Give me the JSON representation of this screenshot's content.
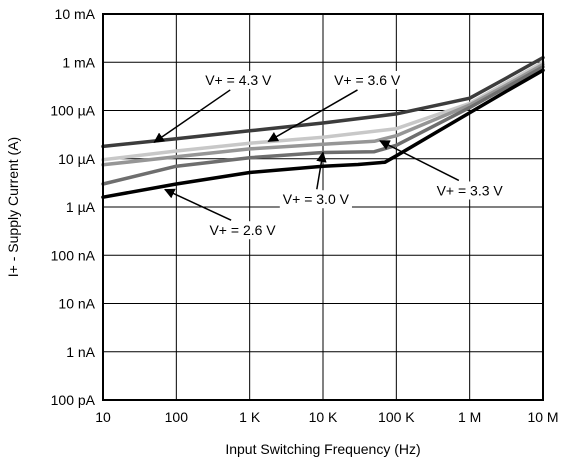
{
  "chart_data": {
    "type": "line",
    "xlabel": "Input Switching Frequency (Hz)",
    "ylabel": "I+ - Supply Current (A)",
    "xscale": "log",
    "yscale": "log",
    "xlim": [
      10,
      10000000
    ],
    "ylim": [
      1e-10,
      0.01
    ],
    "grid": true,
    "x_ticks": [
      {
        "value": 10,
        "label": "10"
      },
      {
        "value": 100,
        "label": "100"
      },
      {
        "value": 1000,
        "label": "1 K"
      },
      {
        "value": 10000,
        "label": "10 K"
      },
      {
        "value": 100000,
        "label": "100 K"
      },
      {
        "value": 1000000,
        "label": "1 M"
      },
      {
        "value": 10000000,
        "label": "10 M"
      }
    ],
    "y_ticks": [
      {
        "value": 1e-10,
        "label": "100 pA"
      },
      {
        "value": 1e-09,
        "label": "1 nA"
      },
      {
        "value": 1e-08,
        "label": "10 nA"
      },
      {
        "value": 1e-07,
        "label": "100 nA"
      },
      {
        "value": 1e-06,
        "label": "1 µA"
      },
      {
        "value": 1e-05,
        "label": "10 µA"
      },
      {
        "value": 0.0001,
        "label": "100 µA"
      },
      {
        "value": 0.001,
        "label": "1 mA"
      },
      {
        "value": 0.01,
        "label": "10 mA"
      }
    ],
    "series": [
      {
        "name": "V+ = 4.3 V",
        "color": "#3c3c3c",
        "x": [
          10,
          100,
          1000,
          10000,
          100000,
          1000000,
          3000000,
          10000000
        ],
        "y": [
          1.8e-05,
          2.6e-05,
          3.8e-05,
          5.5e-05,
          8.5e-05,
          0.00018,
          0.00045,
          0.00125
        ]
      },
      {
        "name": "V+ = 3.6 V",
        "color": "#c8c8c8",
        "x": [
          10,
          100,
          1000,
          10000,
          100000,
          1000000,
          3000000,
          10000000
        ],
        "y": [
          9.5e-06,
          1.45e-05,
          2.1e-05,
          2.8e-05,
          4.2e-05,
          0.00014,
          0.00036,
          0.001
        ]
      },
      {
        "name": "V+ = 3.3 V",
        "color": "#969696",
        "x": [
          10,
          100,
          1000,
          10000,
          50000,
          100000,
          1000000,
          3000000,
          10000000
        ],
        "y": [
          7.5e-06,
          1.1e-05,
          1.6e-05,
          2e-05,
          2.3e-05,
          3e-05,
          0.00013,
          0.00032,
          0.0009
        ]
      },
      {
        "name": "V+ = 3.0 V",
        "color": "#6e6e6e",
        "x": [
          10,
          100,
          1000,
          10000,
          50000,
          100000,
          1000000,
          3000000,
          10000000
        ],
        "y": [
          3e-06,
          7e-06,
          1.05e-05,
          1.35e-05,
          1.4e-05,
          1.9e-05,
          0.000115,
          0.00029,
          0.0008
        ]
      },
      {
        "name": "V+ = 2.6 V",
        "color": "#000000",
        "x": [
          10,
          100,
          1000,
          10000,
          30000,
          70000,
          100000,
          1000000,
          3000000,
          10000000
        ],
        "y": [
          1.6e-06,
          3e-06,
          5.2e-06,
          7e-06,
          7.6e-06,
          8.5e-06,
          1.15e-05,
          9e-05,
          0.00024,
          0.00068
        ]
      }
    ],
    "annotations": [
      {
        "label": "V+ = 4.3 V",
        "series": "V+ = 4.3 V",
        "text_x": 700,
        "text_y": 0.00043,
        "arrow_x": 50,
        "arrow_y": 2.2e-05
      },
      {
        "label": "V+ = 3.6 V",
        "series": "V+ = 3.6 V",
        "text_x": 40000,
        "text_y": 0.00043,
        "arrow_x": 1800,
        "arrow_y": 2.3e-05
      },
      {
        "label": "V+ = 3.0 V",
        "series": "V+ = 3.0 V",
        "text_x": 8000,
        "text_y": 1.45e-06,
        "arrow_x": 10000,
        "arrow_y": 1.35e-05
      },
      {
        "label": "V+ = 3.3 V",
        "series": "V+ = 3.3 V",
        "text_x": 1000000,
        "text_y": 2.2e-06,
        "arrow_x": 60000,
        "arrow_y": 2.35e-05
      },
      {
        "label": "V+ = 2.6 V",
        "series": "V+ = 2.6 V",
        "text_x": 800,
        "text_y": 3.3e-07,
        "arrow_x": 70,
        "arrow_y": 2.3e-06
      }
    ]
  }
}
